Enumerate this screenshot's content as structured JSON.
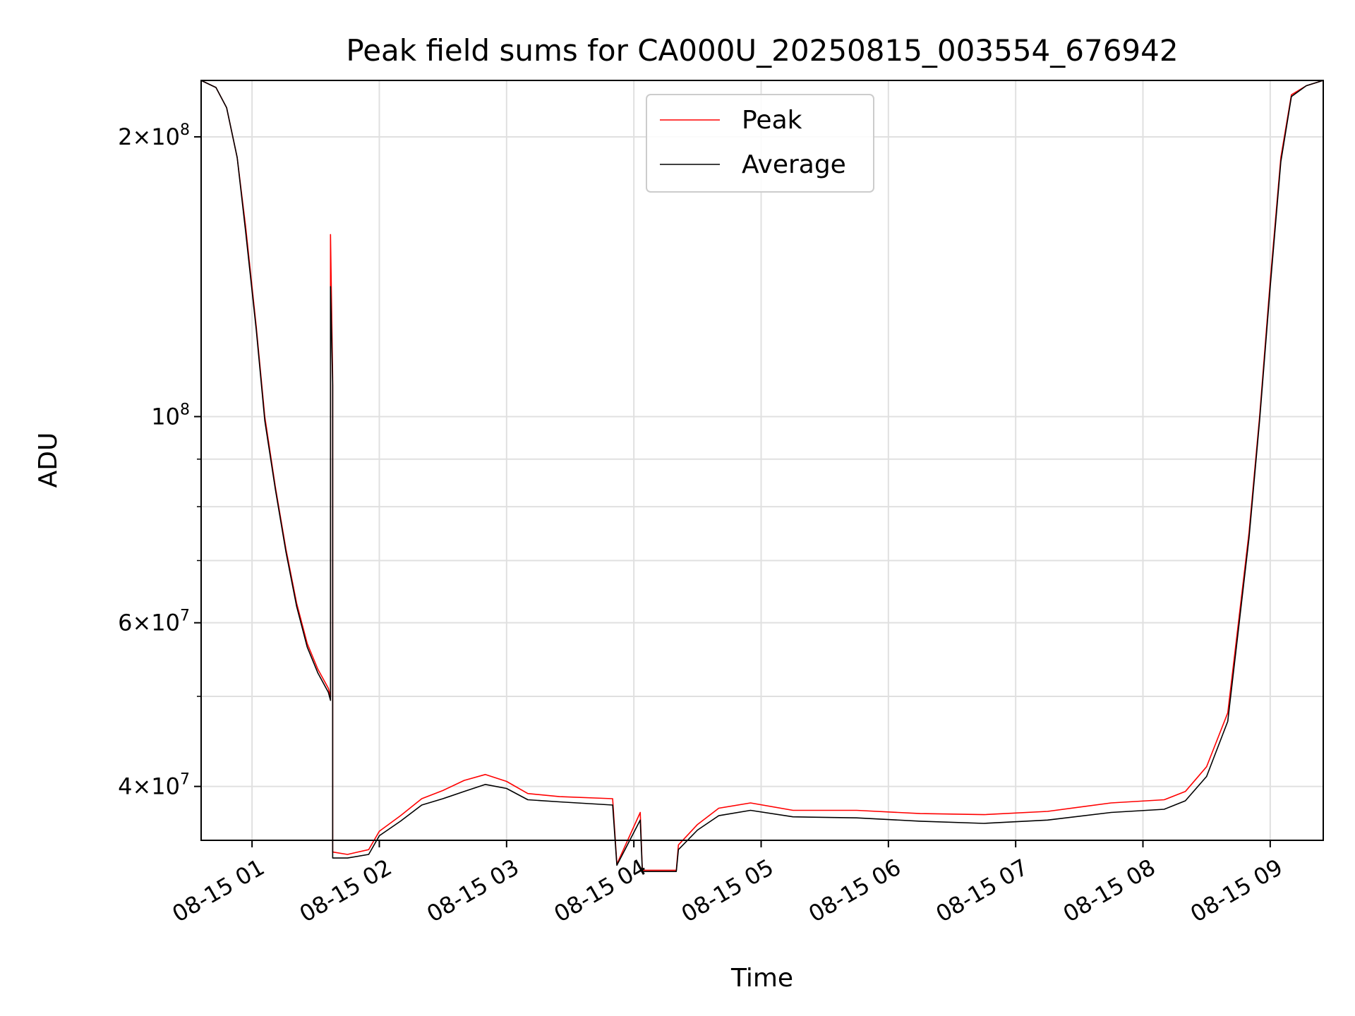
{
  "chart_data": {
    "type": "line",
    "title": "Peak field sums for CA000U_20250815_003554_676942",
    "xlabel": "Time",
    "ylabel": "ADU",
    "yscale": "log",
    "xlim": [
      "2025-08-15T00:36",
      "2025-08-15T09:25"
    ],
    "ylim": [
      35000000,
      230000000
    ],
    "grid": true,
    "legend_position": "upper center",
    "x_ticks": [
      "08-15 01",
      "08-15 02",
      "08-15 03",
      "08-15 04",
      "08-15 05",
      "08-15 06",
      "08-15 07",
      "08-15 08",
      "08-15 09"
    ],
    "y_ticks": [
      {
        "value": 40000000,
        "mant": "4",
        "exp": "7"
      },
      {
        "value": 60000000,
        "mant": "6",
        "exp": "7"
      },
      {
        "value": 100000000,
        "mant": "",
        "exp": "8"
      },
      {
        "value": 200000000,
        "mant": "2",
        "exp": "8"
      }
    ],
    "y_minor_ticks": [
      50000000,
      70000000,
      80000000,
      90000000
    ],
    "series": [
      {
        "name": "Peak",
        "color": "#ff0000",
        "points": [
          [
            "2025-08-15T00:36",
            230000000
          ],
          [
            "2025-08-15T00:43",
            226000000
          ],
          [
            "2025-08-15T00:48",
            215000000
          ],
          [
            "2025-08-15T00:53",
            190000000
          ],
          [
            "2025-08-15T00:57",
            160000000
          ],
          [
            "2025-08-15T01:02",
            125000000
          ],
          [
            "2025-08-15T01:06",
            100000000
          ],
          [
            "2025-08-15T01:11",
            84000000
          ],
          [
            "2025-08-15T01:16",
            72000000
          ],
          [
            "2025-08-15T01:21",
            63000000
          ],
          [
            "2025-08-15T01:26",
            57000000
          ],
          [
            "2025-08-15T01:31",
            53500000
          ],
          [
            "2025-08-15T01:36",
            51000000
          ],
          [
            "2025-08-15T01:37",
            50000000
          ],
          [
            "2025-08-15T01:37",
            157000000
          ],
          [
            "2025-08-15T01:38",
            110000000
          ],
          [
            "2025-08-15T01:38",
            34000000
          ],
          [
            "2025-08-15T01:45",
            33800000
          ],
          [
            "2025-08-15T01:55",
            34200000
          ],
          [
            "2025-08-15T02:00",
            35800000
          ],
          [
            "2025-08-15T02:10",
            37200000
          ],
          [
            "2025-08-15T02:20",
            38800000
          ],
          [
            "2025-08-15T02:30",
            39600000
          ],
          [
            "2025-08-15T02:40",
            40600000
          ],
          [
            "2025-08-15T02:50",
            41200000
          ],
          [
            "2025-08-15T03:00",
            40500000
          ],
          [
            "2025-08-15T03:10",
            39300000
          ],
          [
            "2025-08-15T03:25",
            39000000
          ],
          [
            "2025-08-15T03:50",
            38800000
          ],
          [
            "2025-08-15T03:52",
            33000000
          ],
          [
            "2025-08-15T04:03",
            37500000
          ],
          [
            "2025-08-15T04:04",
            32500000
          ],
          [
            "2025-08-15T04:20",
            32500000
          ],
          [
            "2025-08-15T04:21",
            34600000
          ],
          [
            "2025-08-15T04:30",
            36400000
          ],
          [
            "2025-08-15T04:40",
            37900000
          ],
          [
            "2025-08-15T04:55",
            38400000
          ],
          [
            "2025-08-15T05:15",
            37700000
          ],
          [
            "2025-08-15T05:45",
            37700000
          ],
          [
            "2025-08-15T06:15",
            37400000
          ],
          [
            "2025-08-15T06:45",
            37300000
          ],
          [
            "2025-08-15T07:15",
            37600000
          ],
          [
            "2025-08-15T07:45",
            38400000
          ],
          [
            "2025-08-15T08:10",
            38700000
          ],
          [
            "2025-08-15T08:20",
            39500000
          ],
          [
            "2025-08-15T08:30",
            42000000
          ],
          [
            "2025-08-15T08:40",
            48000000
          ],
          [
            "2025-08-15T08:45",
            60000000
          ],
          [
            "2025-08-15T08:50",
            75000000
          ],
          [
            "2025-08-15T08:55",
            100000000
          ],
          [
            "2025-08-15T09:00",
            140000000
          ],
          [
            "2025-08-15T09:05",
            190000000
          ],
          [
            "2025-08-15T09:10",
            222000000
          ],
          [
            "2025-08-15T09:17",
            227000000
          ],
          [
            "2025-08-15T09:25",
            230000000
          ]
        ]
      },
      {
        "name": "Average",
        "color": "#000000",
        "points": [
          [
            "2025-08-15T00:36",
            230000000
          ],
          [
            "2025-08-15T00:43",
            226000000
          ],
          [
            "2025-08-15T00:48",
            215000000
          ],
          [
            "2025-08-15T00:53",
            190000000
          ],
          [
            "2025-08-15T00:57",
            158000000
          ],
          [
            "2025-08-15T01:02",
            124000000
          ],
          [
            "2025-08-15T01:06",
            99000000
          ],
          [
            "2025-08-15T01:11",
            83500000
          ],
          [
            "2025-08-15T01:16",
            71500000
          ],
          [
            "2025-08-15T01:21",
            62500000
          ],
          [
            "2025-08-15T01:26",
            56500000
          ],
          [
            "2025-08-15T01:31",
            53000000
          ],
          [
            "2025-08-15T01:36",
            50500000
          ],
          [
            "2025-08-15T01:37",
            49500000
          ],
          [
            "2025-08-15T01:37",
            138000000
          ],
          [
            "2025-08-15T01:38",
            108000000
          ],
          [
            "2025-08-15T01:38",
            33500000
          ],
          [
            "2025-08-15T01:45",
            33500000
          ],
          [
            "2025-08-15T01:55",
            33800000
          ],
          [
            "2025-08-15T02:00",
            35400000
          ],
          [
            "2025-08-15T02:10",
            36700000
          ],
          [
            "2025-08-15T02:20",
            38200000
          ],
          [
            "2025-08-15T02:30",
            38800000
          ],
          [
            "2025-08-15T02:40",
            39500000
          ],
          [
            "2025-08-15T02:50",
            40200000
          ],
          [
            "2025-08-15T03:00",
            39800000
          ],
          [
            "2025-08-15T03:10",
            38700000
          ],
          [
            "2025-08-15T03:25",
            38500000
          ],
          [
            "2025-08-15T03:50",
            38200000
          ],
          [
            "2025-08-15T03:52",
            32900000
          ],
          [
            "2025-08-15T04:03",
            36800000
          ],
          [
            "2025-08-15T04:04",
            32400000
          ],
          [
            "2025-08-15T04:20",
            32400000
          ],
          [
            "2025-08-15T04:21",
            34200000
          ],
          [
            "2025-08-15T04:30",
            35900000
          ],
          [
            "2025-08-15T04:40",
            37200000
          ],
          [
            "2025-08-15T04:55",
            37700000
          ],
          [
            "2025-08-15T05:15",
            37100000
          ],
          [
            "2025-08-15T05:45",
            37000000
          ],
          [
            "2025-08-15T06:15",
            36700000
          ],
          [
            "2025-08-15T06:45",
            36500000
          ],
          [
            "2025-08-15T07:15",
            36800000
          ],
          [
            "2025-08-15T07:45",
            37500000
          ],
          [
            "2025-08-15T08:10",
            37800000
          ],
          [
            "2025-08-15T08:20",
            38600000
          ],
          [
            "2025-08-15T08:30",
            41000000
          ],
          [
            "2025-08-15T08:40",
            47000000
          ],
          [
            "2025-08-15T08:45",
            59000000
          ],
          [
            "2025-08-15T08:50",
            74000000
          ],
          [
            "2025-08-15T08:55",
            99000000
          ],
          [
            "2025-08-15T09:00",
            138000000
          ],
          [
            "2025-08-15T09:05",
            188000000
          ],
          [
            "2025-08-15T09:10",
            221000000
          ],
          [
            "2025-08-15T09:17",
            227000000
          ],
          [
            "2025-08-15T09:25",
            230000000
          ]
        ]
      }
    ]
  }
}
